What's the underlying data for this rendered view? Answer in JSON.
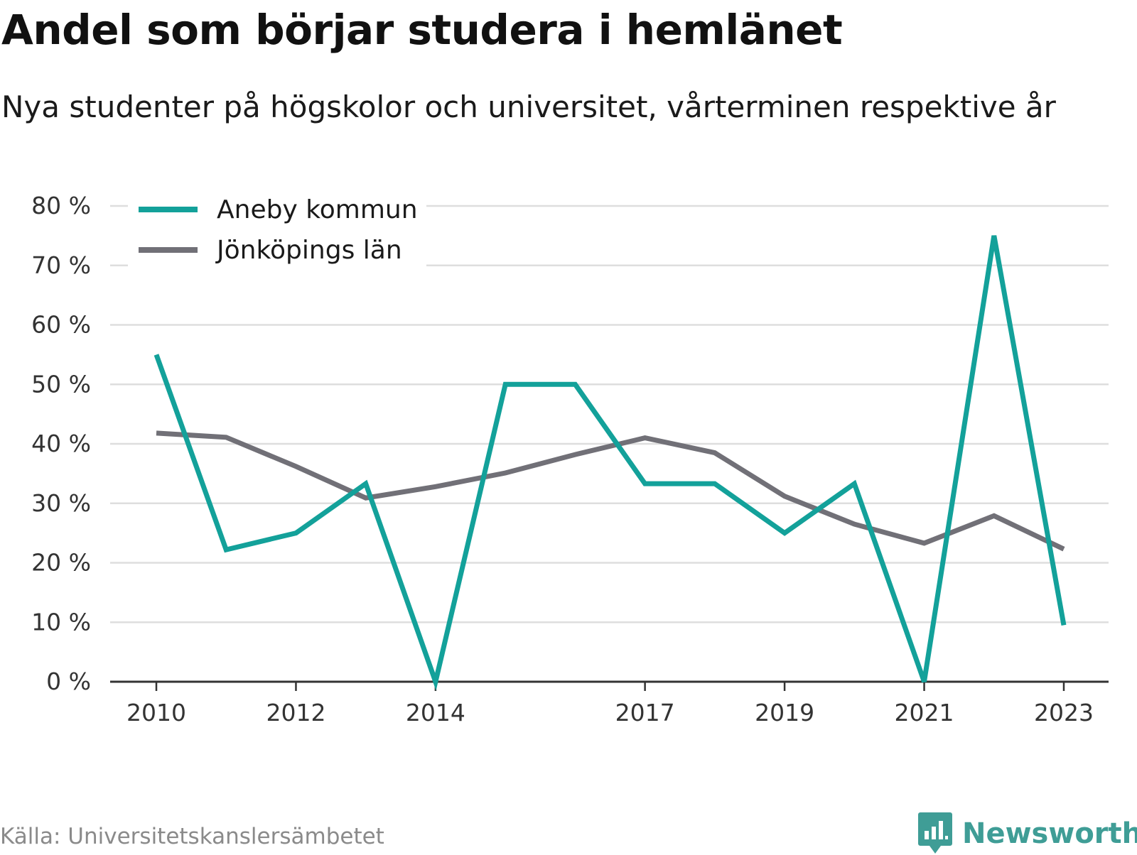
{
  "header": {
    "title": "Andel som börjar studera i hemlänet",
    "subtitle": "Nya studenter på högskolor och universitet, vårterminen respektive år"
  },
  "footer": {
    "source": "Källa: Universitetskanslersämbetet",
    "brand": "Newsworthy"
  },
  "colors": {
    "aneby": "#13a19a",
    "lan": "#717077",
    "grid": "#dedede",
    "axis": "#333333",
    "brand": "#3f9d96"
  },
  "chart_data": {
    "type": "line",
    "x": [
      2010,
      2011,
      2012,
      2013,
      2014,
      2015,
      2016,
      2017,
      2018,
      2019,
      2020,
      2021,
      2022,
      2023
    ],
    "x_tick_labels": [
      "2010",
      "2012",
      "2014",
      "2017",
      "2019",
      "2021",
      "2023"
    ],
    "y_tick_labels": [
      "0 %",
      "10 %",
      "20 %",
      "30 %",
      "40 %",
      "50 %",
      "60 %",
      "70 %",
      "80 %"
    ],
    "ylim": [
      0,
      80
    ],
    "grid": true,
    "legend_position": "top-left",
    "series": [
      {
        "name": "Aneby kommun",
        "values": [
          55,
          22.2,
          25,
          33.3,
          0,
          50,
          50,
          33.3,
          33.3,
          25,
          33.3,
          0,
          75,
          9.5
        ]
      },
      {
        "name": "Jönköpings län",
        "values": [
          41.8,
          41.1,
          36.2,
          30.9,
          32.8,
          35.1,
          38.2,
          41.0,
          38.5,
          31.2,
          26.5,
          23.3,
          27.9,
          22.3
        ]
      }
    ]
  }
}
